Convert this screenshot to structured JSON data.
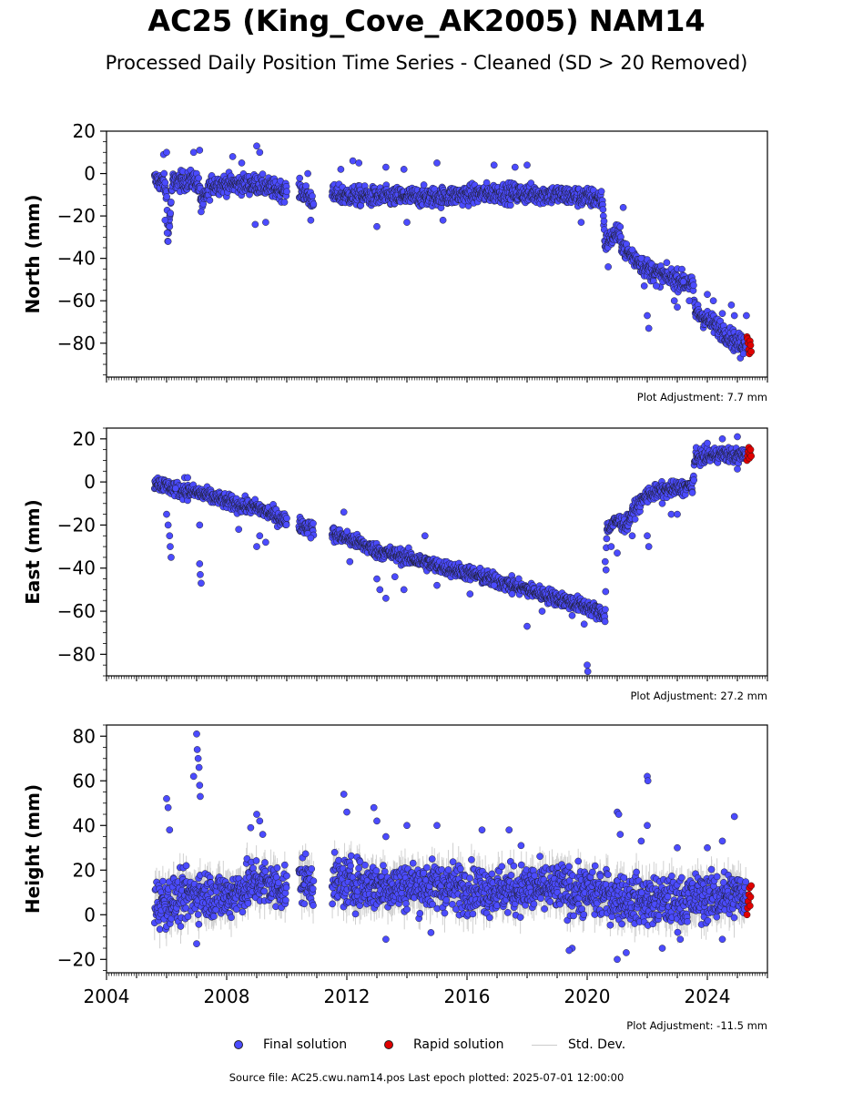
{
  "title": "AC25 (King_Cove_AK2005) NAM14",
  "subtitle": "Processed Daily Position Time Series - Cleaned (SD > 20 Removed)",
  "footer": "Source file: AC25.cwu.nam14.pos  Last epoch plotted: 2025-07-01 12:00:00",
  "legend": {
    "final_label": "Final solution",
    "rapid_label": "Rapid solution",
    "std_label": "Std. Dev."
  },
  "colors": {
    "final": "#4b4bff",
    "rapid": "#e00000",
    "std_dev": "#cccccc",
    "edge": "#1a1a1a"
  },
  "chart_data": [
    {
      "type": "scatter",
      "component": "north",
      "ylabel": "North (mm)",
      "adjustment": "Plot Adjustment: 7.7 mm",
      "xlim": [
        2004.0,
        2026.0
      ],
      "ylim": [
        -96,
        20
      ],
      "yticks": [
        20,
        0,
        -20,
        -40,
        -60,
        -80
      ],
      "ytick_labels": [
        "20",
        "0",
        "−20",
        "−40",
        "−60",
        "−80"
      ],
      "grid": false,
      "final_trend": [
        [
          2005.6,
          -3
        ],
        [
          2005.9,
          -4
        ],
        [
          2006.0,
          -10
        ],
        [
          2006.05,
          -30
        ],
        [
          2006.2,
          -4
        ],
        [
          2007.0,
          -3
        ],
        [
          2007.2,
          -14
        ],
        [
          2007.5,
          -5
        ],
        [
          2008.0,
          -5
        ],
        [
          2009.0,
          -5
        ],
        [
          2009.5,
          -7
        ],
        [
          2009.9,
          -8
        ],
        [
          2010.5,
          -8
        ],
        [
          2010.8,
          -12
        ],
        [
          2011.5,
          -10
        ],
        [
          2013.0,
          -11
        ],
        [
          2015.0,
          -11
        ],
        [
          2017.0,
          -9
        ],
        [
          2019.0,
          -10
        ],
        [
          2020.5,
          -12
        ],
        [
          2020.6,
          -33
        ],
        [
          2021.0,
          -28
        ],
        [
          2021.3,
          -37
        ],
        [
          2021.6,
          -40
        ],
        [
          2022.0,
          -45
        ],
        [
          2022.5,
          -48
        ],
        [
          2023.0,
          -50
        ],
        [
          2023.5,
          -52
        ],
        [
          2023.6,
          -65
        ],
        [
          2024.0,
          -69
        ],
        [
          2024.5,
          -74
        ],
        [
          2025.0,
          -80
        ],
        [
          2025.3,
          -80
        ]
      ],
      "final_gaps": [
        [
          2010.0,
          2010.4
        ],
        [
          2010.9,
          2011.5
        ]
      ],
      "final_noise_mm": 3.2,
      "final_outliers": [
        [
          2005.95,
          -22
        ],
        [
          2006.02,
          -28
        ],
        [
          2006.05,
          -32
        ],
        [
          2006.1,
          -25
        ],
        [
          2005.9,
          9
        ],
        [
          2006.0,
          10
        ],
        [
          2006.9,
          10
        ],
        [
          2007.1,
          11
        ],
        [
          2007.15,
          -18
        ],
        [
          2008.2,
          8
        ],
        [
          2008.5,
          5
        ],
        [
          2009.0,
          13
        ],
        [
          2009.1,
          10
        ],
        [
          2008.95,
          -24
        ],
        [
          2009.3,
          -23
        ],
        [
          2010.8,
          -22
        ],
        [
          2010.7,
          0
        ],
        [
          2011.8,
          2
        ],
        [
          2012.2,
          6
        ],
        [
          2012.4,
          5
        ],
        [
          2013.0,
          -25
        ],
        [
          2013.3,
          3
        ],
        [
          2013.9,
          2
        ],
        [
          2014.0,
          -23
        ],
        [
          2015.0,
          5
        ],
        [
          2015.2,
          -22
        ],
        [
          2016.9,
          4
        ],
        [
          2017.6,
          3
        ],
        [
          2018.0,
          4
        ],
        [
          2019.8,
          -23
        ],
        [
          2020.7,
          -44
        ],
        [
          2021.2,
          -16
        ],
        [
          2021.5,
          -36
        ],
        [
          2021.8,
          -40
        ],
        [
          2021.9,
          -53
        ],
        [
          2022.0,
          -67
        ],
        [
          2022.05,
          -73
        ],
        [
          2022.3,
          -53
        ],
        [
          2022.9,
          -60
        ],
        [
          2023.0,
          -63
        ],
        [
          2023.2,
          -51
        ],
        [
          2023.4,
          -60
        ],
        [
          2024.0,
          -57
        ],
        [
          2024.2,
          -60
        ],
        [
          2024.5,
          -66
        ],
        [
          2024.8,
          -62
        ],
        [
          2025.1,
          -87
        ],
        [
          2025.2,
          -85
        ],
        [
          2024.9,
          -67
        ],
        [
          2025.3,
          -67
        ]
      ],
      "rapid": [
        [
          2025.32,
          -77
        ],
        [
          2025.34,
          -78
        ],
        [
          2025.36,
          -80
        ],
        [
          2025.38,
          -83
        ],
        [
          2025.4,
          -85
        ],
        [
          2025.42,
          -79
        ],
        [
          2025.44,
          -81
        ],
        [
          2025.46,
          -84
        ]
      ]
    },
    {
      "type": "scatter",
      "component": "east",
      "ylabel": "East (mm)",
      "adjustment": "Plot Adjustment: 27.2 mm",
      "xlim": [
        2004.0,
        2026.0
      ],
      "ylim": [
        -90,
        25
      ],
      "yticks": [
        20,
        0,
        -20,
        -40,
        -60,
        -80
      ],
      "ytick_labels": [
        "20",
        "0",
        "−20",
        "−40",
        "−60",
        "−80"
      ],
      "grid": false,
      "final_trend": [
        [
          2005.6,
          0
        ],
        [
          2006.0,
          -2
        ],
        [
          2006.5,
          -4
        ],
        [
          2007.0,
          -5
        ],
        [
          2007.5,
          -7
        ],
        [
          2008.0,
          -9
        ],
        [
          2008.5,
          -11
        ],
        [
          2009.0,
          -12
        ],
        [
          2009.5,
          -15
        ],
        [
          2010.0,
          -18
        ],
        [
          2010.5,
          -20
        ],
        [
          2010.9,
          -22
        ],
        [
          2011.5,
          -24
        ],
        [
          2012.0,
          -26
        ],
        [
          2012.5,
          -29
        ],
        [
          2013.0,
          -32
        ],
        [
          2014.0,
          -35
        ],
        [
          2015.0,
          -39
        ],
        [
          2016.0,
          -42
        ],
        [
          2017.0,
          -46
        ],
        [
          2018.0,
          -50
        ],
        [
          2019.0,
          -54
        ],
        [
          2020.0,
          -58
        ],
        [
          2020.6,
          -62
        ],
        [
          2020.65,
          -22
        ],
        [
          2021.0,
          -18
        ],
        [
          2021.3,
          -20
        ],
        [
          2021.6,
          -12
        ],
        [
          2022.0,
          -6
        ],
        [
          2022.5,
          -4
        ],
        [
          2023.0,
          -3
        ],
        [
          2023.5,
          -2
        ],
        [
          2023.6,
          11
        ],
        [
          2024.0,
          12
        ],
        [
          2024.5,
          13
        ],
        [
          2025.0,
          12
        ],
        [
          2025.3,
          13
        ]
      ],
      "final_gaps": [
        [
          2010.0,
          2010.4
        ],
        [
          2010.9,
          2011.5
        ]
      ],
      "final_noise_mm": 2.4,
      "final_outliers": [
        [
          2006.0,
          -15
        ],
        [
          2006.05,
          -20
        ],
        [
          2006.1,
          -25
        ],
        [
          2006.12,
          -30
        ],
        [
          2006.15,
          -35
        ],
        [
          2006.3,
          -3
        ],
        [
          2006.6,
          2
        ],
        [
          2006.7,
          2
        ],
        [
          2007.1,
          -38
        ],
        [
          2007.12,
          -43
        ],
        [
          2007.15,
          -47
        ],
        [
          2007.1,
          -20
        ],
        [
          2008.4,
          -22
        ],
        [
          2009.0,
          -30
        ],
        [
          2009.1,
          -25
        ],
        [
          2009.3,
          -28
        ],
        [
          2010.7,
          -24
        ],
        [
          2010.8,
          -26
        ],
        [
          2011.9,
          -14
        ],
        [
          2012.1,
          -37
        ],
        [
          2013.0,
          -45
        ],
        [
          2013.1,
          -50
        ],
        [
          2013.3,
          -54
        ],
        [
          2013.6,
          -44
        ],
        [
          2013.9,
          -50
        ],
        [
          2014.6,
          -25
        ],
        [
          2015.0,
          -48
        ],
        [
          2016.1,
          -52
        ],
        [
          2016.9,
          -48
        ],
        [
          2017.5,
          -52
        ],
        [
          2018.0,
          -67
        ],
        [
          2018.5,
          -60
        ],
        [
          2019.5,
          -62
        ],
        [
          2019.9,
          -66
        ],
        [
          2020.0,
          -85
        ],
        [
          2020.02,
          -88
        ],
        [
          2020.6,
          -37
        ],
        [
          2020.8,
          -30
        ],
        [
          2021.0,
          -33
        ],
        [
          2021.5,
          -25
        ],
        [
          2022.0,
          -25
        ],
        [
          2022.05,
          -30
        ],
        [
          2022.5,
          -10
        ],
        [
          2022.8,
          -15
        ],
        [
          2023.0,
          -15
        ],
        [
          2023.5,
          -5
        ],
        [
          2024.0,
          18
        ],
        [
          2024.5,
          20
        ],
        [
          2025.0,
          21
        ],
        [
          2025.0,
          6
        ]
      ],
      "rapid": [
        [
          2025.32,
          10
        ],
        [
          2025.34,
          12
        ],
        [
          2025.36,
          14
        ],
        [
          2025.38,
          16
        ],
        [
          2025.4,
          11
        ],
        [
          2025.42,
          13
        ],
        [
          2025.44,
          15
        ],
        [
          2025.46,
          12
        ]
      ]
    },
    {
      "type": "scatter",
      "component": "height",
      "ylabel": "Height (mm)",
      "adjustment": "Plot Adjustment: -11.5 mm",
      "xlim": [
        2004.0,
        2026.0
      ],
      "ylim": [
        -26,
        85
      ],
      "yticks": [
        80,
        60,
        40,
        20,
        0,
        -20
      ],
      "ytick_labels": [
        "80",
        "60",
        "40",
        "20",
        "0",
        "−20"
      ],
      "xticks": [
        2004,
        2008,
        2012,
        2016,
        2020,
        2024
      ],
      "xtick_labels": [
        "2004",
        "2008",
        "2012",
        "2016",
        "2020",
        "2024"
      ],
      "grid": false,
      "final_trend": [
        [
          2005.6,
          5
        ],
        [
          2006.5,
          7
        ],
        [
          2007.0,
          10
        ],
        [
          2008.0,
          8
        ],
        [
          2009.0,
          15
        ],
        [
          2009.9,
          12
        ],
        [
          2010.5,
          16
        ],
        [
          2010.9,
          14
        ],
        [
          2011.5,
          15
        ],
        [
          2013.0,
          13
        ],
        [
          2015.0,
          13
        ],
        [
          2017.0,
          11
        ],
        [
          2019.0,
          12
        ],
        [
          2020.0,
          10
        ],
        [
          2021.0,
          8
        ],
        [
          2022.0,
          6
        ],
        [
          2023.0,
          6
        ],
        [
          2024.0,
          8
        ],
        [
          2025.3,
          9
        ]
      ],
      "final_gaps": [
        [
          2010.0,
          2010.4
        ],
        [
          2010.9,
          2011.5
        ]
      ],
      "final_noise_mm": 7.5,
      "final_outliers": [
        [
          2006.0,
          52
        ],
        [
          2006.05,
          48
        ],
        [
          2006.1,
          38
        ],
        [
          2006.9,
          62
        ],
        [
          2007.0,
          81
        ],
        [
          2007.02,
          74
        ],
        [
          2007.05,
          70
        ],
        [
          2007.08,
          66
        ],
        [
          2007.1,
          58
        ],
        [
          2007.12,
          53
        ],
        [
          2007.0,
          -13
        ],
        [
          2008.8,
          39
        ],
        [
          2009.0,
          45
        ],
        [
          2009.1,
          42
        ],
        [
          2009.2,
          36
        ],
        [
          2011.9,
          54
        ],
        [
          2012.0,
          46
        ],
        [
          2012.9,
          48
        ],
        [
          2013.0,
          42
        ],
        [
          2013.3,
          35
        ],
        [
          2013.3,
          -11
        ],
        [
          2014.0,
          40
        ],
        [
          2015.0,
          40
        ],
        [
          2014.8,
          -8
        ],
        [
          2016.5,
          38
        ],
        [
          2017.4,
          38
        ],
        [
          2017.8,
          31
        ],
        [
          2019.5,
          -15
        ],
        [
          2019.4,
          -16
        ],
        [
          2021.0,
          46
        ],
        [
          2021.05,
          45
        ],
        [
          2021.1,
          36
        ],
        [
          2021.0,
          -20
        ],
        [
          2021.3,
          -17
        ],
        [
          2021.8,
          33
        ],
        [
          2022.0,
          62
        ],
        [
          2022.02,
          60
        ],
        [
          2022.0,
          40
        ],
        [
          2022.5,
          -15
        ],
        [
          2023.0,
          30
        ],
        [
          2023.1,
          -11
        ],
        [
          2024.0,
          30
        ],
        [
          2024.5,
          33
        ],
        [
          2024.9,
          44
        ],
        [
          2024.5,
          -11
        ]
      ],
      "rapid": [
        [
          2025.32,
          0
        ],
        [
          2025.34,
          3
        ],
        [
          2025.36,
          6
        ],
        [
          2025.38,
          9
        ],
        [
          2025.4,
          12
        ],
        [
          2025.42,
          4
        ],
        [
          2025.44,
          8
        ],
        [
          2025.46,
          13
        ]
      ]
    }
  ]
}
